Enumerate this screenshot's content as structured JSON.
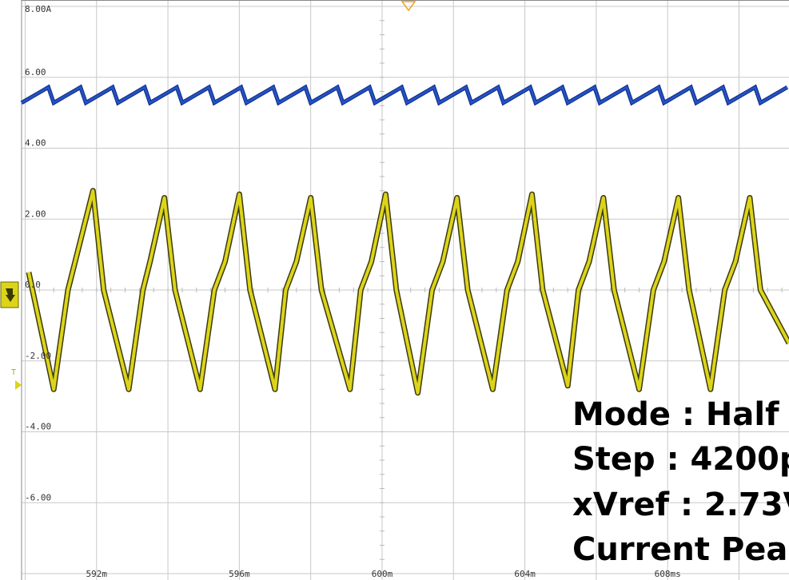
{
  "chart_data": {
    "type": "line",
    "y_unit_top_label": "8.00A",
    "y_tick_labels": [
      "6.00",
      "4.00",
      "2.00",
      "0.0",
      "-2.00",
      "-4.00",
      "-6.00"
    ],
    "y_ticks": [
      6,
      4,
      2,
      0,
      -2,
      -4,
      -6
    ],
    "ylim": [
      -8,
      8
    ],
    "x_tick_labels": [
      "592m",
      "596m",
      "600m",
      "604m",
      "608ms"
    ],
    "x_ticks": [
      592,
      596,
      600,
      604,
      608
    ],
    "xlim": [
      589.9,
      611.4
    ],
    "grid": true,
    "trigger_marker": "T",
    "series": [
      {
        "color": "#2152c8",
        "x": [
          590,
          594,
          598,
          602,
          606,
          610,
          611.4
        ],
        "y": [
          5.5,
          5.5,
          5.5,
          5.5,
          5.5,
          5.5,
          5.5
        ],
        "ripple": 0.22,
        "ripple_period_ms": 0.9
      },
      {
        "color": "#ddd41a",
        "x": [
          590.1,
          590.8,
          591.2,
          591.4,
          591.9,
          592.2,
          592.9,
          593.3,
          593.5,
          593.9,
          594.2,
          594.9,
          595.3,
          595.6,
          596.0,
          596.3,
          597.0,
          597.3,
          597.6,
          598.0,
          598.3,
          599.1,
          599.4,
          599.7,
          600.1,
          600.4,
          601.0,
          601.4,
          601.7,
          602.1,
          602.4,
          603.1,
          603.5,
          603.8,
          604.2,
          604.5,
          605.2,
          605.5,
          605.8,
          606.2,
          606.5,
          607.2,
          607.6,
          607.9,
          608.3,
          608.6,
          609.2,
          609.6,
          609.9,
          610.3,
          610.6,
          611.4
        ],
        "y": [
          0.5,
          -2.8,
          0.0,
          0.8,
          2.8,
          0.0,
          -2.8,
          0.0,
          0.8,
          2.6,
          0.0,
          -2.8,
          0.0,
          0.8,
          2.7,
          0.0,
          -2.8,
          0.0,
          0.8,
          2.6,
          0.0,
          -2.8,
          0.0,
          0.8,
          2.7,
          0.0,
          -2.9,
          0.0,
          0.8,
          2.6,
          0.0,
          -2.8,
          0.0,
          0.8,
          2.7,
          0.0,
          -2.7,
          0.0,
          0.8,
          2.6,
          0.0,
          -2.8,
          0.0,
          0.8,
          2.6,
          0.0,
          -2.8,
          0.0,
          0.8,
          2.6,
          0.0,
          -1.5
        ]
      }
    ]
  },
  "overlay_lines": [
    "Mode : Half",
    "Step : 4200p",
    "xVref : 2.73V",
    "Current Pea"
  ]
}
